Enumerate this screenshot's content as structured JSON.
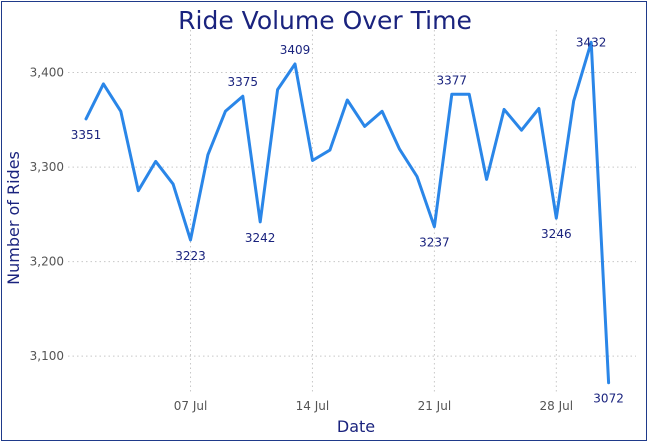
{
  "chart_data": {
    "type": "line",
    "title": "Ride Volume Over Time",
    "xlabel": "Date",
    "ylabel": "Number of Rides",
    "ylim": [
      3060,
      3445
    ],
    "xlim": [
      "2025-07-01",
      "2025-08-01"
    ],
    "grid": true,
    "line_color": "#2a86e8",
    "title_color": "#1a237e",
    "x": [
      "2025-07-01",
      "2025-07-02",
      "2025-07-03",
      "2025-07-04",
      "2025-07-05",
      "2025-07-06",
      "2025-07-07",
      "2025-07-08",
      "2025-07-09",
      "2025-07-10",
      "2025-07-11",
      "2025-07-12",
      "2025-07-13",
      "2025-07-14",
      "2025-07-15",
      "2025-07-16",
      "2025-07-17",
      "2025-07-18",
      "2025-07-19",
      "2025-07-20",
      "2025-07-21",
      "2025-07-22",
      "2025-07-23",
      "2025-07-24",
      "2025-07-25",
      "2025-07-26",
      "2025-07-27",
      "2025-07-28",
      "2025-07-29",
      "2025-07-30",
      "2025-07-31"
    ],
    "y": [
      3351,
      3388,
      3359,
      3275,
      3306,
      3282,
      3223,
      3313,
      3359,
      3375,
      3242,
      3382,
      3409,
      3307,
      3318,
      3371,
      3343,
      3359,
      3319,
      3290,
      3237,
      3377,
      3377,
      3287,
      3361,
      3339,
      3362,
      3246,
      3370,
      3432,
      3072
    ],
    "y_ticks": [
      {
        "value": 3100,
        "label": "3,100"
      },
      {
        "value": 3200,
        "label": "3,200"
      },
      {
        "value": 3300,
        "label": "3,300"
      },
      {
        "value": 3400,
        "label": "3,400"
      }
    ],
    "x_ticks": [
      {
        "value": "2025-07-07",
        "label": "07 Jul"
      },
      {
        "value": "2025-07-14",
        "label": "14 Jul"
      },
      {
        "value": "2025-07-21",
        "label": "21 Jul"
      },
      {
        "value": "2025-07-28",
        "label": "28 Jul"
      }
    ],
    "data_labels": [
      {
        "x": "2025-07-01",
        "text": "3351",
        "position": "below"
      },
      {
        "x": "2025-07-07",
        "text": "3223",
        "position": "below"
      },
      {
        "x": "2025-07-10",
        "text": "3375",
        "position": "above"
      },
      {
        "x": "2025-07-11",
        "text": "3242",
        "position": "below"
      },
      {
        "x": "2025-07-13",
        "text": "3409",
        "position": "above"
      },
      {
        "x": "2025-07-21",
        "text": "3237",
        "position": "below"
      },
      {
        "x": "2025-07-22",
        "text": "3377",
        "position": "above"
      },
      {
        "x": "2025-07-28",
        "text": "3246",
        "position": "below"
      },
      {
        "x": "2025-07-30",
        "text": "3432",
        "position": "on"
      },
      {
        "x": "2025-07-31",
        "text": "3072",
        "position": "below"
      }
    ]
  }
}
